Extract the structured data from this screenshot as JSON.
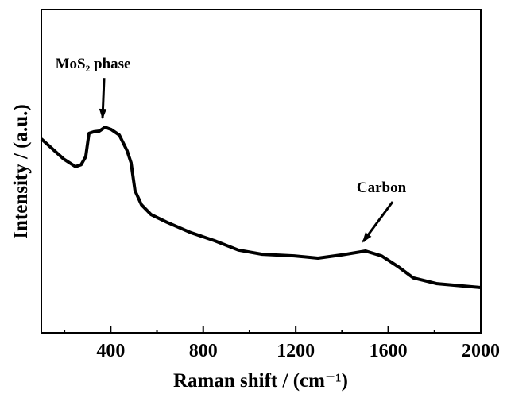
{
  "chart_data": {
    "type": "line",
    "xlabel": "Raman shift / (cm⁻¹)",
    "ylabel": "Intensity / (a.u.)",
    "xlim": [
      100,
      2000
    ],
    "ylim": [
      0,
      100
    ],
    "xticks": [
      400,
      800,
      1200,
      1600,
      2000
    ],
    "xminorticks": [
      200,
      600,
      1000,
      1400,
      1800
    ],
    "x": [
      100,
      196,
      248,
      272,
      292,
      306,
      327,
      351,
      375,
      402,
      437,
      471,
      488,
      505,
      533,
      574,
      643,
      746,
      849,
      952,
      1055,
      1193,
      1296,
      1399,
      1502,
      1571,
      1640,
      1708,
      1811,
      2000
    ],
    "series": [
      {
        "color": "#000000",
        "values": [
          60,
          53.8,
          51.4,
          52,
          54.5,
          61.7,
          62.2,
          62.4,
          63.6,
          62.9,
          61.2,
          56.3,
          52.6,
          44,
          39.6,
          36.6,
          34.2,
          31,
          28.5,
          25.6,
          24.3,
          23.8,
          23.1,
          24.1,
          25.3,
          23.8,
          20.6,
          17,
          15.2,
          14
        ]
      }
    ],
    "annotations": [
      {
        "text": "MoS₂ phase",
        "x": 375,
        "y": 63.6
      },
      {
        "text": "Carbon",
        "x": 1502,
        "y": 25.3
      }
    ]
  }
}
